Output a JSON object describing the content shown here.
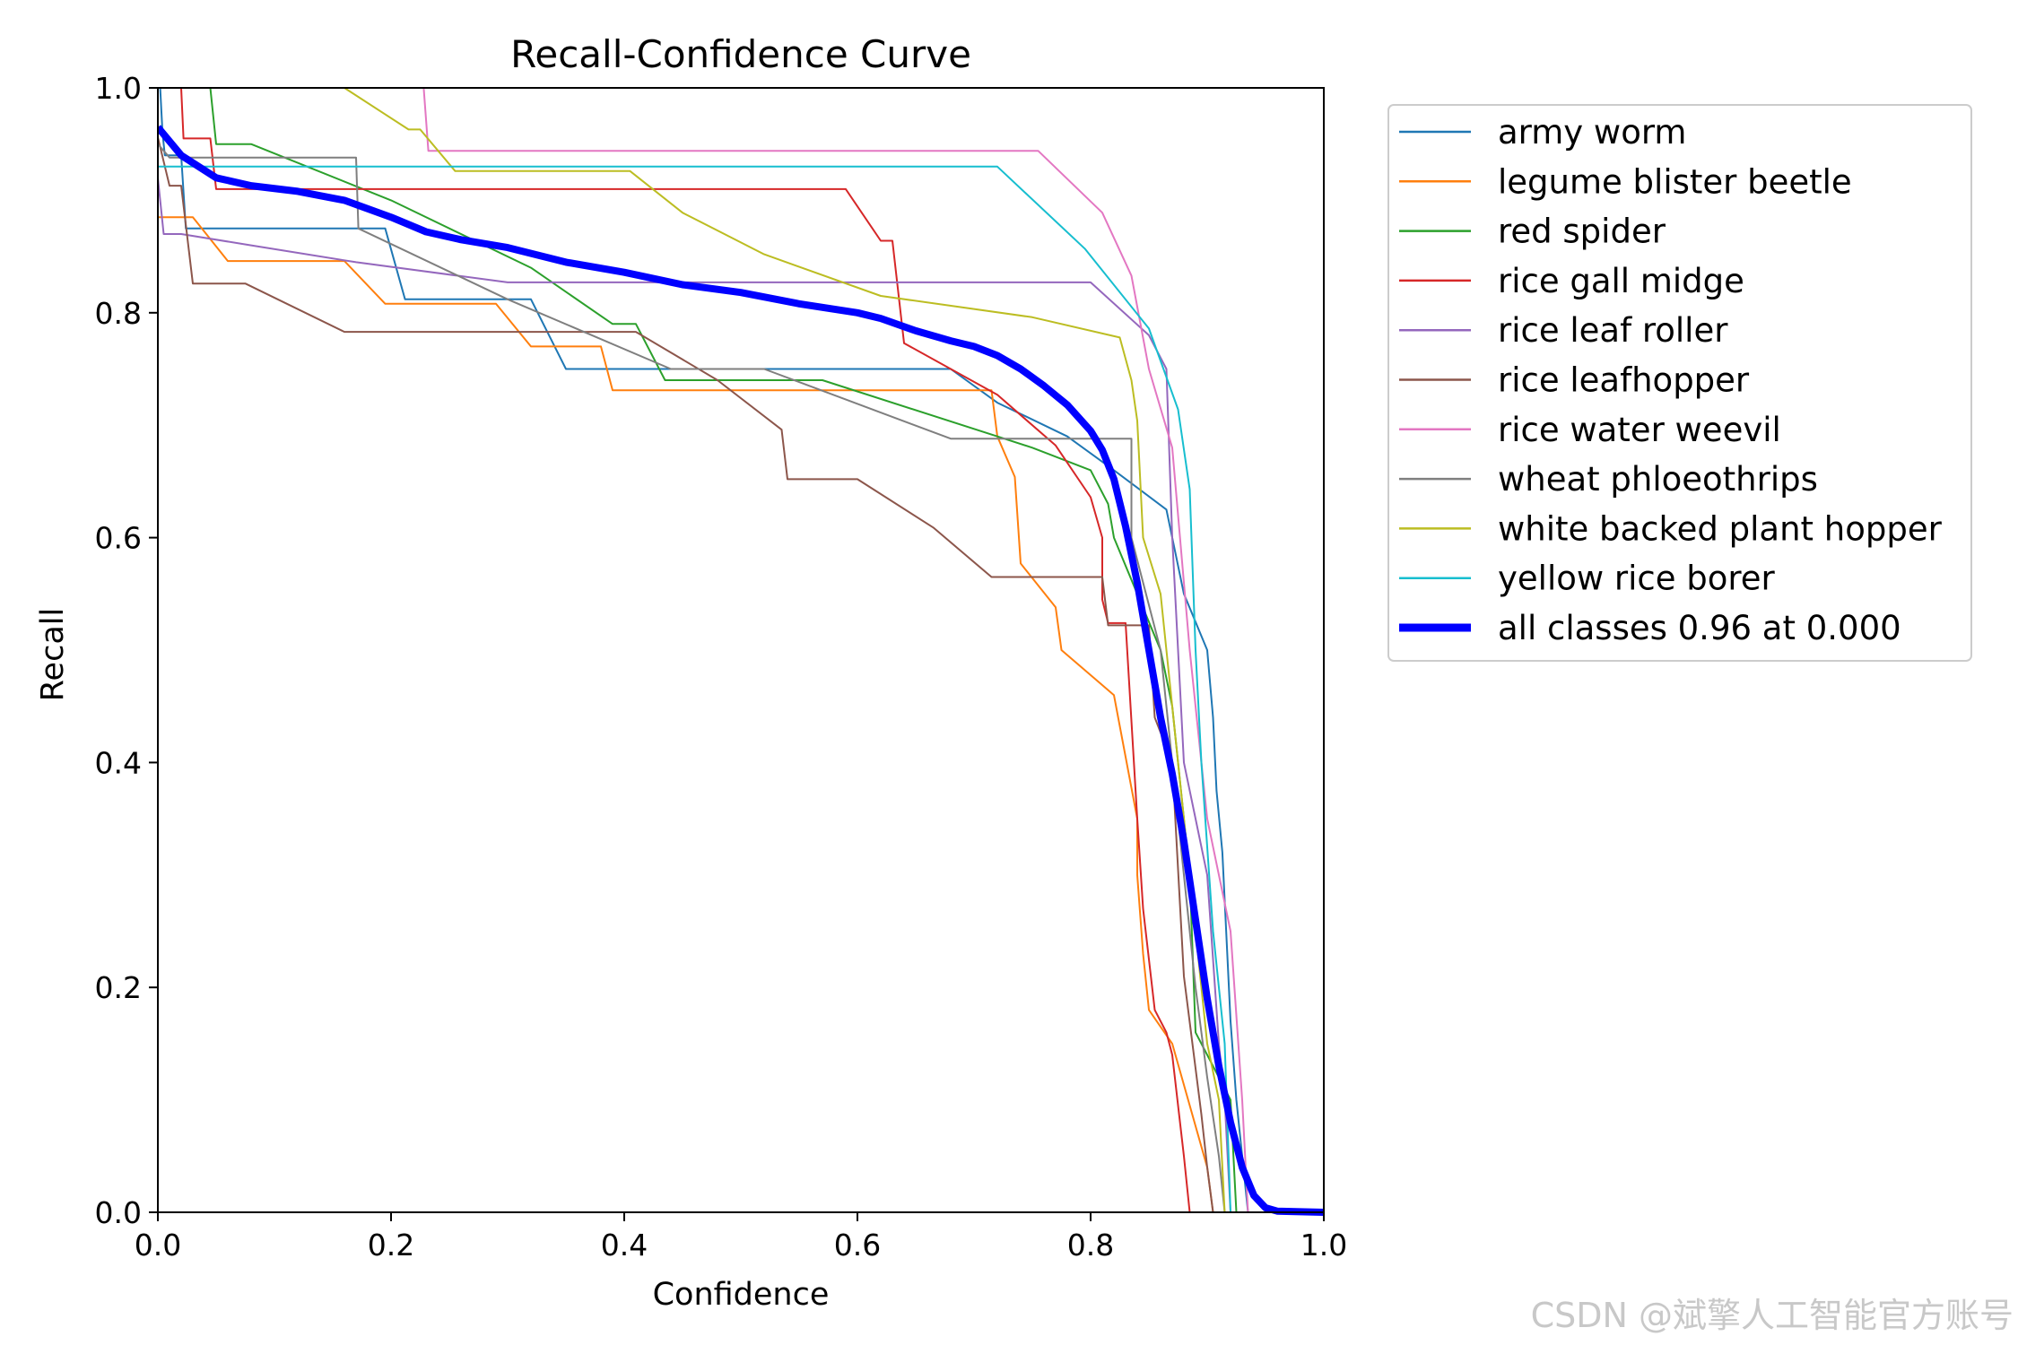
{
  "chart_data": {
    "type": "line",
    "title": "Recall-Confidence Curve",
    "xlabel": "Confidence",
    "ylabel": "Recall",
    "xlim": [
      0,
      1
    ],
    "ylim": [
      0,
      1
    ],
    "xticks": [
      "0.0",
      "0.2",
      "0.4",
      "0.6",
      "0.8",
      "1.0"
    ],
    "yticks": [
      "0.0",
      "0.2",
      "0.4",
      "0.6",
      "0.8",
      "1.0"
    ],
    "legend_position": "outside-right",
    "series": [
      {
        "name": "army worm",
        "color": "#1f77b4",
        "width": 2,
        "points": [
          [
            0,
            1.0
          ],
          [
            0.002,
            1.0
          ],
          [
            0.004,
            0.96
          ],
          [
            0.006,
            0.94
          ],
          [
            0.02,
            0.94
          ],
          [
            0.024,
            0.875
          ],
          [
            0.17,
            0.875
          ],
          [
            0.195,
            0.875
          ],
          [
            0.212,
            0.812
          ],
          [
            0.32,
            0.812
          ],
          [
            0.35,
            0.75
          ],
          [
            0.68,
            0.75
          ],
          [
            0.72,
            0.72
          ],
          [
            0.78,
            0.69
          ],
          [
            0.82,
            0.66
          ],
          [
            0.865,
            0.625
          ],
          [
            0.88,
            0.55
          ],
          [
            0.9,
            0.5
          ],
          [
            0.905,
            0.44
          ],
          [
            0.908,
            0.375
          ],
          [
            0.913,
            0.32
          ],
          [
            0.92,
            0.17
          ],
          [
            0.925,
            0.1
          ],
          [
            0.93,
            0.05
          ],
          [
            0.935,
            0
          ]
        ]
      },
      {
        "name": "legume blister beetle",
        "color": "#ff7f0e",
        "width": 2,
        "points": [
          [
            0,
            0.885
          ],
          [
            0.002,
            0.885
          ],
          [
            0.03,
            0.885
          ],
          [
            0.06,
            0.846
          ],
          [
            0.16,
            0.846
          ],
          [
            0.195,
            0.808
          ],
          [
            0.29,
            0.808
          ],
          [
            0.32,
            0.77
          ],
          [
            0.38,
            0.77
          ],
          [
            0.39,
            0.731
          ],
          [
            0.715,
            0.731
          ],
          [
            0.72,
            0.69
          ],
          [
            0.735,
            0.654
          ],
          [
            0.74,
            0.577
          ],
          [
            0.77,
            0.538
          ],
          [
            0.775,
            0.5
          ],
          [
            0.82,
            0.46
          ],
          [
            0.84,
            0.35
          ],
          [
            0.84,
            0.3
          ],
          [
            0.845,
            0.23
          ],
          [
            0.85,
            0.18
          ],
          [
            0.87,
            0.15
          ],
          [
            0.9,
            0.04
          ],
          [
            0.905,
            0
          ]
        ]
      },
      {
        "name": "red spider",
        "color": "#2ca02c",
        "width": 2,
        "points": [
          [
            0.045,
            1.0
          ],
          [
            0.05,
            0.95
          ],
          [
            0.08,
            0.95
          ],
          [
            0.2,
            0.9
          ],
          [
            0.32,
            0.84
          ],
          [
            0.39,
            0.79
          ],
          [
            0.41,
            0.79
          ],
          [
            0.435,
            0.74
          ],
          [
            0.57,
            0.74
          ],
          [
            0.72,
            0.69
          ],
          [
            0.75,
            0.68
          ],
          [
            0.8,
            0.66
          ],
          [
            0.815,
            0.63
          ],
          [
            0.82,
            0.6
          ],
          [
            0.84,
            0.55
          ],
          [
            0.86,
            0.5
          ],
          [
            0.87,
            0.45
          ],
          [
            0.885,
            0.3
          ],
          [
            0.89,
            0.16
          ],
          [
            0.9,
            0.14
          ],
          [
            0.92,
            0.1
          ],
          [
            0.925,
            0
          ]
        ]
      },
      {
        "name": "rice gall midge",
        "color": "#d62728",
        "width": 2,
        "points": [
          [
            0.02,
            1.0
          ],
          [
            0.022,
            0.955
          ],
          [
            0.045,
            0.955
          ],
          [
            0.05,
            0.91
          ],
          [
            0.59,
            0.91
          ],
          [
            0.62,
            0.864
          ],
          [
            0.63,
            0.864
          ],
          [
            0.64,
            0.773
          ],
          [
            0.72,
            0.727
          ],
          [
            0.77,
            0.682
          ],
          [
            0.8,
            0.636
          ],
          [
            0.81,
            0.6
          ],
          [
            0.81,
            0.545
          ],
          [
            0.815,
            0.524
          ],
          [
            0.83,
            0.524
          ],
          [
            0.84,
            0.35
          ],
          [
            0.845,
            0.27
          ],
          [
            0.855,
            0.18
          ],
          [
            0.865,
            0.16
          ],
          [
            0.87,
            0.14
          ],
          [
            0.88,
            0.05
          ],
          [
            0.885,
            0
          ]
        ]
      },
      {
        "name": "rice leaf roller",
        "color": "#9467bd",
        "width": 2,
        "points": [
          [
            0,
            0.92
          ],
          [
            0.005,
            0.87
          ],
          [
            0.02,
            0.87
          ],
          [
            0.08,
            0.86
          ],
          [
            0.17,
            0.845
          ],
          [
            0.3,
            0.827
          ],
          [
            0.8,
            0.827
          ],
          [
            0.85,
            0.78
          ],
          [
            0.865,
            0.75
          ],
          [
            0.87,
            0.6
          ],
          [
            0.88,
            0.4
          ],
          [
            0.9,
            0.3
          ],
          [
            0.91,
            0.15
          ],
          [
            0.915,
            0.1
          ],
          [
            0.92,
            0
          ]
        ]
      },
      {
        "name": "rice leafhopper",
        "color": "#8c564b",
        "width": 2,
        "points": [
          [
            0,
            0.956
          ],
          [
            0.01,
            0.913
          ],
          [
            0.02,
            0.913
          ],
          [
            0.03,
            0.826
          ],
          [
            0.075,
            0.826
          ],
          [
            0.16,
            0.783
          ],
          [
            0.41,
            0.783
          ],
          [
            0.48,
            0.74
          ],
          [
            0.535,
            0.696
          ],
          [
            0.54,
            0.652
          ],
          [
            0.6,
            0.652
          ],
          [
            0.665,
            0.609
          ],
          [
            0.715,
            0.565
          ],
          [
            0.81,
            0.565
          ],
          [
            0.815,
            0.522
          ],
          [
            0.85,
            0.522
          ],
          [
            0.855,
            0.44
          ],
          [
            0.87,
            0.4
          ],
          [
            0.88,
            0.21
          ],
          [
            0.895,
            0.087
          ],
          [
            0.9,
            0.04
          ],
          [
            0.905,
            0
          ]
        ]
      },
      {
        "name": "rice water weevil",
        "color": "#e377c2",
        "width": 2,
        "points": [
          [
            0.228,
            1.0
          ],
          [
            0.232,
            0.944
          ],
          [
            0.755,
            0.944
          ],
          [
            0.81,
            0.889
          ],
          [
            0.835,
            0.833
          ],
          [
            0.85,
            0.75
          ],
          [
            0.87,
            0.68
          ],
          [
            0.885,
            0.5
          ],
          [
            0.9,
            0.35
          ],
          [
            0.92,
            0.25
          ],
          [
            0.93,
            0.1
          ],
          [
            0.935,
            0
          ]
        ]
      },
      {
        "name": "wheat phloeothrips",
        "color": "#7f7f7f",
        "width": 2,
        "points": [
          [
            0,
            0.95
          ],
          [
            0.01,
            0.938
          ],
          [
            0.17,
            0.938
          ],
          [
            0.172,
            0.875
          ],
          [
            0.3,
            0.812
          ],
          [
            0.44,
            0.75
          ],
          [
            0.52,
            0.75
          ],
          [
            0.68,
            0.688
          ],
          [
            0.835,
            0.688
          ],
          [
            0.835,
            0.6
          ],
          [
            0.86,
            0.5
          ],
          [
            0.88,
            0.3
          ],
          [
            0.89,
            0.2
          ],
          [
            0.9,
            0.12
          ],
          [
            0.91,
            0.05
          ],
          [
            0.915,
            0
          ]
        ]
      },
      {
        "name": "white backed plant hopper",
        "color": "#bcbd22",
        "width": 2,
        "points": [
          [
            0.16,
            1.0
          ],
          [
            0.215,
            0.963
          ],
          [
            0.225,
            0.963
          ],
          [
            0.255,
            0.926
          ],
          [
            0.405,
            0.926
          ],
          [
            0.45,
            0.889
          ],
          [
            0.52,
            0.852
          ],
          [
            0.62,
            0.815
          ],
          [
            0.75,
            0.796
          ],
          [
            0.825,
            0.778
          ],
          [
            0.835,
            0.74
          ],
          [
            0.84,
            0.704
          ],
          [
            0.845,
            0.6
          ],
          [
            0.86,
            0.55
          ],
          [
            0.875,
            0.4
          ],
          [
            0.885,
            0.3
          ],
          [
            0.9,
            0.15
          ],
          [
            0.91,
            0.1
          ],
          [
            0.915,
            0
          ]
        ]
      },
      {
        "name": "yellow rice borer",
        "color": "#17becf",
        "width": 2,
        "points": [
          [
            0,
            0.93
          ],
          [
            0.05,
            0.93
          ],
          [
            0.72,
            0.93
          ],
          [
            0.795,
            0.857
          ],
          [
            0.85,
            0.786
          ],
          [
            0.875,
            0.714
          ],
          [
            0.885,
            0.643
          ],
          [
            0.89,
            0.5
          ],
          [
            0.895,
            0.4
          ],
          [
            0.905,
            0.25
          ],
          [
            0.915,
            0.15
          ],
          [
            0.92,
            0
          ]
        ]
      },
      {
        "name": "all classes 0.96 at 0.000",
        "color": "#0000ff",
        "width": 8,
        "points": [
          [
            0,
            0.965
          ],
          [
            0.02,
            0.94
          ],
          [
            0.05,
            0.92
          ],
          [
            0.08,
            0.913
          ],
          [
            0.12,
            0.908
          ],
          [
            0.16,
            0.9
          ],
          [
            0.2,
            0.885
          ],
          [
            0.23,
            0.872
          ],
          [
            0.26,
            0.865
          ],
          [
            0.3,
            0.858
          ],
          [
            0.35,
            0.845
          ],
          [
            0.4,
            0.836
          ],
          [
            0.45,
            0.825
          ],
          [
            0.5,
            0.818
          ],
          [
            0.55,
            0.808
          ],
          [
            0.6,
            0.8
          ],
          [
            0.62,
            0.795
          ],
          [
            0.65,
            0.784
          ],
          [
            0.68,
            0.775
          ],
          [
            0.7,
            0.77
          ],
          [
            0.72,
            0.762
          ],
          [
            0.74,
            0.75
          ],
          [
            0.76,
            0.735
          ],
          [
            0.78,
            0.718
          ],
          [
            0.8,
            0.695
          ],
          [
            0.81,
            0.678
          ],
          [
            0.82,
            0.652
          ],
          [
            0.83,
            0.61
          ],
          [
            0.84,
            0.56
          ],
          [
            0.85,
            0.5
          ],
          [
            0.86,
            0.44
          ],
          [
            0.87,
            0.39
          ],
          [
            0.88,
            0.33
          ],
          [
            0.89,
            0.26
          ],
          [
            0.9,
            0.19
          ],
          [
            0.91,
            0.13
          ],
          [
            0.92,
            0.08
          ],
          [
            0.93,
            0.04
          ],
          [
            0.94,
            0.015
          ],
          [
            0.95,
            0.004
          ],
          [
            0.96,
            0.001
          ],
          [
            1.0,
            0
          ]
        ]
      }
    ]
  },
  "watermark": "CSDN @斌擎人工智能官方账号"
}
